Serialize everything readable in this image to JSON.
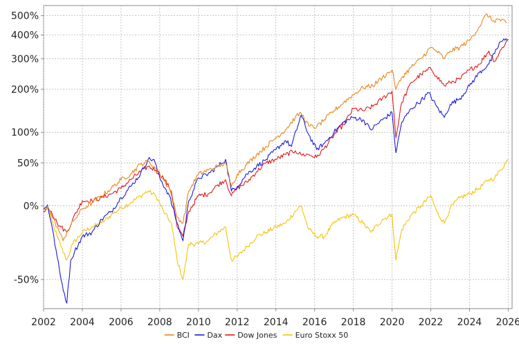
{
  "chart_data": {
    "type": "line",
    "title": "",
    "xlabel": "",
    "ylabel": "",
    "y_scale": "log(1+r)",
    "xlim": [
      2002.0,
      2026.2
    ],
    "ylim": [
      -62,
      560
    ],
    "x_ticks": [
      2002,
      2004,
      2006,
      2008,
      2010,
      2012,
      2014,
      2016,
      2018,
      2020,
      2022,
      2024,
      2026
    ],
    "x_tick_labels": [
      "2002",
      "2004",
      "2006",
      "2008",
      "2010",
      "2012",
      "2014",
      "2016",
      "2018",
      "2020",
      "2022",
      "2024",
      "2026"
    ],
    "y_ticks": [
      -50,
      0,
      50,
      100,
      200,
      300,
      400,
      500
    ],
    "y_tick_labels": [
      "-50%",
      "0%",
      "50%",
      "100%",
      "200%",
      "300%",
      "400%",
      "500%"
    ],
    "grid": true,
    "legend_position": "bottom",
    "series": [
      {
        "name": "BCI",
        "color": "#e8861a",
        "x": [
          2002.0,
          2002.2,
          2002.4,
          2002.7,
          2003.0,
          2003.2,
          2003.6,
          2004.0,
          2004.5,
          2005.0,
          2005.5,
          2006.0,
          2006.5,
          2007.0,
          2007.4,
          2007.7,
          2008.0,
          2008.5,
          2008.9,
          2009.2,
          2009.5,
          2010.0,
          2010.5,
          2011.0,
          2011.4,
          2011.7,
          2012.0,
          2012.5,
          2013.0,
          2013.5,
          2014.0,
          2014.5,
          2015.0,
          2015.3,
          2015.7,
          2016.1,
          2016.5,
          2017.0,
          2017.5,
          2018.0,
          2018.5,
          2019.0,
          2019.5,
          2020.0,
          2020.2,
          2020.5,
          2021.0,
          2021.5,
          2022.0,
          2022.3,
          2022.7,
          2023.0,
          2023.5,
          2024.0,
          2024.5,
          2024.9,
          2025.2,
          2025.5,
          2025.9
        ],
        "values": [
          -3,
          0,
          -8,
          -18,
          -28,
          -22,
          -12,
          -3,
          3,
          10,
          18,
          28,
          35,
          48,
          52,
          45,
          35,
          18,
          -10,
          -15,
          15,
          35,
          40,
          45,
          50,
          20,
          35,
          48,
          62,
          75,
          90,
          105,
          130,
          140,
          112,
          110,
          125,
          145,
          165,
          185,
          205,
          210,
          235,
          260,
          200,
          235,
          270,
          300,
          345,
          330,
          300,
          330,
          345,
          375,
          440,
          510,
          470,
          480,
          460
        ]
      },
      {
        "name": "Dax",
        "color": "#1a1adc",
        "x": [
          2002.0,
          2002.2,
          2002.4,
          2002.7,
          2002.9,
          2003.2,
          2003.4,
          2003.6,
          2004.0,
          2004.5,
          2005.0,
          2005.5,
          2006.0,
          2006.5,
          2007.0,
          2007.4,
          2007.7,
          2008.0,
          2008.5,
          2008.9,
          2009.2,
          2009.5,
          2010.0,
          2010.5,
          2011.0,
          2011.4,
          2011.7,
          2012.0,
          2012.5,
          2013.0,
          2013.5,
          2014.0,
          2014.5,
          2014.8,
          2015.3,
          2015.7,
          2016.1,
          2016.5,
          2017.0,
          2017.5,
          2018.0,
          2018.5,
          2018.9,
          2019.5,
          2020.0,
          2020.2,
          2020.5,
          2021.0,
          2021.5,
          2021.9,
          2022.3,
          2022.7,
          2023.0,
          2023.5,
          2024.0,
          2024.5,
          2025.0,
          2025.3,
          2025.6,
          2026.0
        ],
        "values": [
          -3,
          1,
          -15,
          -38,
          -50,
          -60,
          -40,
          -35,
          -25,
          -22,
          -12,
          -5,
          8,
          20,
          35,
          55,
          55,
          30,
          10,
          -15,
          -28,
          5,
          30,
          35,
          45,
          55,
          15,
          20,
          35,
          45,
          55,
          70,
          85,
          75,
          135,
          95,
          70,
          80,
          100,
          120,
          130,
          125,
          105,
          125,
          140,
          65,
          120,
          150,
          170,
          190,
          155,
          130,
          160,
          175,
          210,
          250,
          280,
          320,
          370,
          380
        ]
      },
      {
        "name": "Dow Jones",
        "color": "#e01818",
        "x": [
          2002.0,
          2002.2,
          2002.4,
          2002.7,
          2002.9,
          2003.2,
          2003.5,
          2004.0,
          2004.5,
          2005.0,
          2005.5,
          2006.0,
          2006.5,
          2007.0,
          2007.4,
          2007.8,
          2008.2,
          2008.6,
          2008.9,
          2009.2,
          2009.5,
          2010.0,
          2010.5,
          2011.0,
          2011.4,
          2011.7,
          2012.0,
          2012.5,
          2013.0,
          2013.5,
          2014.0,
          2014.5,
          2015.0,
          2015.3,
          2015.7,
          2016.1,
          2016.5,
          2017.0,
          2017.5,
          2018.0,
          2018.5,
          2019.0,
          2019.5,
          2020.0,
          2020.2,
          2020.5,
          2021.0,
          2021.5,
          2022.0,
          2022.3,
          2022.7,
          2023.0,
          2023.5,
          2024.0,
          2024.5,
          2025.0,
          2025.3,
          2025.7,
          2026.0
        ],
        "values": [
          -5,
          0,
          -5,
          -15,
          -18,
          -22,
          -12,
          5,
          5,
          8,
          12,
          18,
          28,
          38,
          45,
          40,
          30,
          15,
          -18,
          -25,
          -5,
          10,
          12,
          22,
          28,
          10,
          18,
          25,
          38,
          50,
          55,
          62,
          68,
          62,
          62,
          58,
          72,
          95,
          115,
          150,
          145,
          155,
          175,
          195,
          90,
          165,
          220,
          245,
          265,
          240,
          210,
          220,
          230,
          260,
          280,
          330,
          290,
          345,
          380
        ]
      },
      {
        "name": "Euro Stoxx 50",
        "color": "#f2c40a",
        "x": [
          2002.0,
          2002.2,
          2002.4,
          2002.7,
          2002.9,
          2003.2,
          2003.5,
          2004.0,
          2004.5,
          2005.0,
          2005.5,
          2006.0,
          2006.5,
          2007.0,
          2007.4,
          2007.8,
          2008.2,
          2008.6,
          2008.9,
          2009.2,
          2009.5,
          2010.0,
          2010.5,
          2011.0,
          2011.4,
          2011.7,
          2012.0,
          2012.5,
          2013.0,
          2013.5,
          2014.0,
          2014.5,
          2015.0,
          2015.3,
          2015.7,
          2016.1,
          2016.5,
          2017.0,
          2017.5,
          2018.0,
          2018.5,
          2018.9,
          2019.5,
          2020.0,
          2020.2,
          2020.5,
          2021.0,
          2021.5,
          2022.0,
          2022.3,
          2022.7,
          2023.0,
          2023.5,
          2024.0,
          2024.5,
          2025.0,
          2025.3,
          2025.6,
          2026.0
        ],
        "values": [
          -4,
          -2,
          -12,
          -25,
          -32,
          -40,
          -30,
          -22,
          -18,
          -15,
          -8,
          -2,
          3,
          10,
          15,
          10,
          -5,
          -15,
          -40,
          -50,
          -30,
          -30,
          -28,
          -22,
          -18,
          -40,
          -38,
          -32,
          -25,
          -22,
          -18,
          -15,
          -5,
          0,
          -20,
          -25,
          -25,
          -15,
          -10,
          -8,
          -15,
          -22,
          -12,
          -8,
          -40,
          -20,
          -8,
          0,
          10,
          -5,
          -15,
          -2,
          8,
          12,
          18,
          28,
          30,
          40,
          55
        ]
      }
    ]
  }
}
